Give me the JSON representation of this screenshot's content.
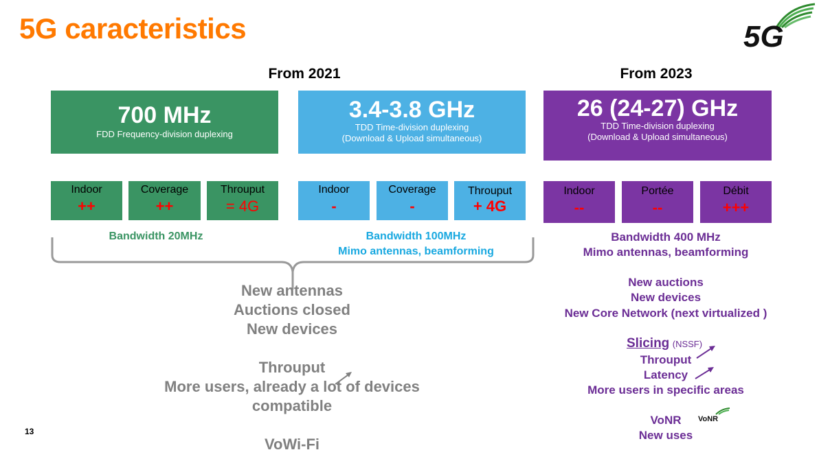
{
  "title": "5G caracteristics",
  "logo_text": "5G",
  "page_number": "13",
  "periods": [
    "From 2021",
    "From 2023"
  ],
  "bands": [
    {
      "freq": "700 MHz",
      "dup1": "FDD Frequency-division duplexing",
      "dup2": ""
    },
    {
      "freq": "3.4-3.8 GHz",
      "dup1": "TDD Time-division duplexing",
      "dup2": "(Download & Upload simultaneous)"
    },
    {
      "freq": "26 (24-27) GHz",
      "dup1": "TDD Time-division duplexing",
      "dup2": "(Download & Upload simultaneous)"
    }
  ],
  "cells": {
    "b700": [
      {
        "label": "Indoor",
        "value": "++"
      },
      {
        "label": "Coverage",
        "value": "++"
      },
      {
        "label": "Throuput",
        "value": "= 4G"
      }
    ],
    "b34": [
      {
        "label": "Indoor",
        "value": "-"
      },
      {
        "label": "Coverage",
        "value": "-"
      },
      {
        "label": "Throuput",
        "value": "+ 4G"
      }
    ],
    "b26": [
      {
        "label": "Indoor",
        "value": "--"
      },
      {
        "label": "Portée",
        "value": "--"
      },
      {
        "label": "Débit",
        "value": "+++"
      }
    ]
  },
  "bandwidth": {
    "b700": "Bandwidth 20MHz",
    "b34_1": "Bandwidth 100MHz",
    "b34_2": "Mimo antennas, beamforming",
    "b26_1": "Bandwidth 400 MHz",
    "b26_2": "Mimo antennas, beamforming"
  },
  "left_lines": [
    "New antennas",
    "Auctions closed",
    "New devices",
    "Throuput",
    "More users, already a lot of devices",
    "compatible",
    "VoWi-Fi"
  ],
  "right_lines": {
    "auctions": "New auctions",
    "devices": "New devices",
    "core": "New Core Network (next virtualized )",
    "slicing": "Slicing",
    "nssf": "(NSSF)",
    "throuput": "Throuput",
    "latency": "Latency",
    "more_users": "More users in specific areas",
    "vonr": "VoNR",
    "vonr_logo": "VoNR",
    "new_uses": "New uses"
  },
  "colors": {
    "orange": "#FF7900",
    "green": "#3A9463",
    "blue": "#4DB1E4",
    "purple": "#7B35A3",
    "red": "#FF0000",
    "gray": "#808080"
  }
}
